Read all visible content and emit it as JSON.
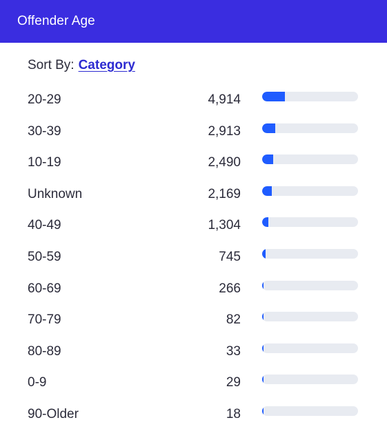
{
  "header": {
    "title": "Offender Age"
  },
  "sort": {
    "prefix": "Sort By:",
    "value": "Category"
  },
  "colors": {
    "brand": "#3a2de0",
    "link": "#2d2bd1",
    "bar": "#1f5cff",
    "track": "#e8ebf1"
  },
  "rows": [
    {
      "label": "20-29",
      "count": "4,914",
      "value": 4914
    },
    {
      "label": "30-39",
      "count": "2,913",
      "value": 2913
    },
    {
      "label": "10-19",
      "count": "2,490",
      "value": 2490
    },
    {
      "label": "Unknown",
      "count": "2,169",
      "value": 2169
    },
    {
      "label": "40-49",
      "count": "1,304",
      "value": 1304
    },
    {
      "label": "50-59",
      "count": "745",
      "value": 745
    },
    {
      "label": "60-69",
      "count": "266",
      "value": 266
    },
    {
      "label": "70-79",
      "count": "82",
      "value": 82
    },
    {
      "label": "80-89",
      "count": "33",
      "value": 33
    },
    {
      "label": "0-9",
      "count": "29",
      "value": 29
    },
    {
      "label": "90-Older",
      "count": "18",
      "value": 18
    }
  ],
  "bar_scale_max": 21000
}
